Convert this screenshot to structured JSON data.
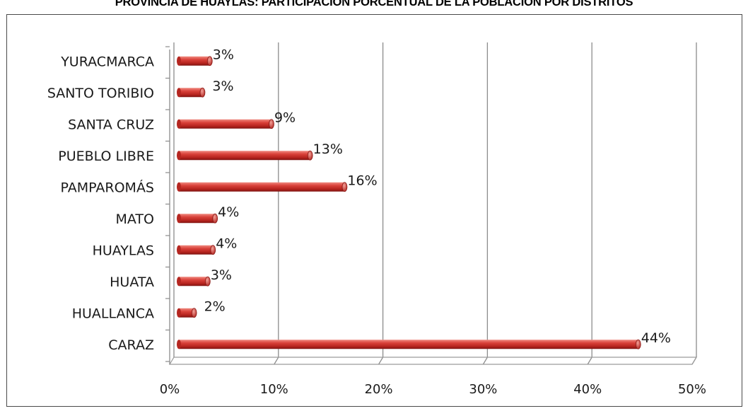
{
  "chart_data": {
    "type": "bar",
    "orientation": "horizontal",
    "title": "PROVINCIA DE HUAYLAS: PARTICIPACIÓN PORCENTUAL DE LA POBLACIÓN POR DISTRITOS",
    "categories": [
      "CARAZ",
      "HUALLANCA",
      "HUATA",
      "HUAYLAS",
      "MATO",
      "PAMPAROMÁS",
      "PUEBLO LIBRE",
      "SANTA CRUZ",
      "SANTO TORIBIO",
      "YURACMARCA"
    ],
    "values": [
      44.3,
      1.8,
      3.1,
      3.6,
      3.8,
      16.2,
      12.9,
      9.2,
      2.6,
      3.3
    ],
    "data_labels": [
      "44%",
      "2%",
      "3%",
      "4%",
      "4%",
      "16%",
      "13%",
      "9%",
      "3%",
      "3%"
    ],
    "xlim": [
      0,
      50
    ],
    "x_ticks": [
      "0%",
      "10%",
      "20%",
      "30%",
      "40%",
      "50%"
    ],
    "xlabel": "",
    "ylabel": "",
    "grid": "vertical",
    "legend": "none",
    "bar_color": "#c0392b"
  }
}
